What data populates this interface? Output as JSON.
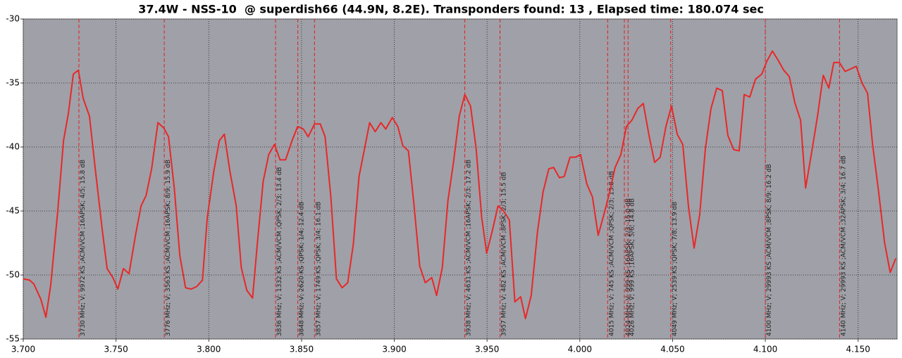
{
  "chart_data": {
    "type": "line",
    "title": "37.4W - NSS-10  @ superdish66 (44.9N, 8.2E). Transponders found: 13 , Elapsed time: 180.074 sec",
    "x": [
      3.7,
      3.7034,
      3.7057,
      3.7095,
      3.7122,
      3.7148,
      3.7186,
      3.7217,
      3.7243,
      3.727,
      3.7297,
      3.7323,
      3.7357,
      3.7388,
      3.7426,
      3.7452,
      3.7483,
      3.751,
      3.754,
      3.757,
      3.7605,
      3.7635,
      3.7662,
      3.7692,
      3.7726,
      3.7757,
      3.7783,
      3.7814,
      3.7844,
      3.7875,
      3.7905,
      3.7935,
      3.7966,
      3.7992,
      3.8027,
      3.8057,
      3.8084,
      3.8114,
      3.8148,
      3.8175,
      3.8205,
      3.8236,
      3.8262,
      3.8293,
      3.8323,
      3.8354,
      3.8384,
      3.8414,
      3.8449,
      3.8479,
      3.851,
      3.8536,
      3.857,
      3.8601,
      3.8627,
      3.8658,
      3.8688,
      3.8719,
      3.8749,
      3.8779,
      3.881,
      3.884,
      3.8867,
      3.8897,
      3.8928,
      3.8954,
      3.8989,
      3.9019,
      3.9046,
      3.9076,
      3.9106,
      3.9137,
      3.9167,
      3.9202,
      3.9228,
      3.9259,
      3.9289,
      3.9319,
      3.935,
      3.938,
      3.9411,
      3.9441,
      3.9471,
      3.9498,
      3.9529,
      3.9559,
      3.9589,
      3.962,
      3.965,
      3.9681,
      3.9707,
      3.9738,
      3.9772,
      3.9802,
      3.9833,
      3.9859,
      3.989,
      3.9916,
      3.9947,
      3.9977,
      4.0004,
      4.0038,
      4.0068,
      4.0099,
      4.0133,
      4.0163,
      4.019,
      4.0221,
      4.0251,
      4.0281,
      4.0312,
      4.0342,
      4.0373,
      4.0403,
      4.0433,
      4.0464,
      4.0494,
      4.0525,
      4.0555,
      4.0586,
      4.0616,
      4.0646,
      4.0677,
      4.0707,
      4.0738,
      4.0768,
      4.0798,
      4.0829,
      4.0859,
      4.0886,
      4.0916,
      4.0947,
      4.0981,
      4.1008,
      4.1038,
      4.1068,
      4.1099,
      4.1129,
      4.116,
      4.119,
      4.1217,
      4.1251,
      4.1281,
      4.1312,
      4.1342,
      4.1369,
      4.1399,
      4.143,
      4.146,
      4.149,
      4.1521,
      4.1551,
      4.1578,
      4.1608,
      4.1643,
      4.1673,
      4.1703
    ],
    "series": [
      {
        "color": "#e82828",
        "values": [
          -50.3,
          -50.4,
          -50.7,
          -51.9,
          -53.3,
          -50.8,
          -45.0,
          -39.5,
          -37.4,
          -34.3,
          -34.0,
          -36.2,
          -37.6,
          -41.7,
          -46.5,
          -49.5,
          -50.2,
          -51.1,
          -49.5,
          -49.9,
          -46.9,
          -44.6,
          -43.8,
          -41.7,
          -38.1,
          -38.5,
          -39.2,
          -43.2,
          -48.5,
          -51.0,
          -51.1,
          -50.9,
          -50.4,
          -45.5,
          -41.9,
          -39.5,
          -39.0,
          -41.9,
          -44.6,
          -49.4,
          -51.2,
          -51.8,
          -47.5,
          -42.7,
          -40.6,
          -39.8,
          -41.0,
          -41.0,
          -39.5,
          -38.4,
          -38.6,
          -39.2,
          -38.2,
          -38.2,
          -39.2,
          -43.9,
          -50.3,
          -51.0,
          -50.6,
          -47.6,
          -42.3,
          -40.1,
          -38.1,
          -38.8,
          -38.1,
          -38.6,
          -37.7,
          -38.4,
          -39.9,
          -40.3,
          -44.5,
          -49.3,
          -50.6,
          -50.2,
          -51.6,
          -49.4,
          -44.2,
          -41.2,
          -37.6,
          -35.9,
          -36.8,
          -40.1,
          -45.5,
          -48.3,
          -46.5,
          -44.6,
          -45.0,
          -45.7,
          -52.1,
          -51.7,
          -53.4,
          -51.6,
          -46.6,
          -43.5,
          -41.7,
          -41.6,
          -42.4,
          -42.3,
          -40.8,
          -40.8,
          -40.6,
          -42.9,
          -43.9,
          -46.9,
          -45.1,
          -43.4,
          -41.6,
          -40.6,
          -38.4,
          -37.9,
          -37.0,
          -36.6,
          -39.1,
          -41.2,
          -40.8,
          -38.4,
          -36.8,
          -39.0,
          -39.8,
          -44.7,
          -47.9,
          -45.3,
          -40.1,
          -37.0,
          -35.4,
          -35.6,
          -39.1,
          -40.2,
          -40.3,
          -35.9,
          -36.1,
          -34.7,
          -34.3,
          -33.3,
          -32.5,
          -33.2,
          -34.0,
          -34.5,
          -36.6,
          -37.9,
          -43.2,
          -40.3,
          -37.6,
          -34.4,
          -35.4,
          -33.4,
          -33.4,
          -34.1,
          -33.9,
          -33.7,
          -35.0,
          -35.8,
          -39.8,
          -43.2,
          -47.5,
          -49.8,
          -48.7
        ]
      }
    ],
    "xlim": [
      3.7,
      4.171
    ],
    "ylim": [
      -55,
      -30
    ],
    "xticks": [
      {
        "value": 3.7,
        "label": "3.700"
      },
      {
        "value": 3.75,
        "label": "3.750"
      },
      {
        "value": 3.8,
        "label": "3.800"
      },
      {
        "value": 3.85,
        "label": "3.850"
      },
      {
        "value": 3.9,
        "label": "3.900"
      },
      {
        "value": 3.95,
        "label": "3.950"
      },
      {
        "value": 4.0,
        "label": "4.000"
      },
      {
        "value": 4.05,
        "label": "4.050"
      },
      {
        "value": 4.1,
        "label": "4.100"
      },
      {
        "value": 4.15,
        "label": "4.150"
      }
    ],
    "yticks": [
      -55,
      -50,
      -45,
      -40,
      -35,
      -30
    ],
    "grid": true,
    "annotation_color": "#e02020",
    "annotations": [
      {
        "x": 3.73,
        "label": "3730 MHz; V; 9972 KS ;ACM/VCM ;16APSK; 4/5; 15.8 dB"
      },
      {
        "x": 3.776,
        "label": "3776 MHz; V; 3563 KS ;ACM/VCM ;16APSK; 8/9; 15.9 dB"
      },
      {
        "x": 3.836,
        "label": "3836 MHz; V; 1332 KS ;ACM/VCM ;QPSK; 2/3; 13.4 dB"
      },
      {
        "x": 3.848,
        "label": "3848 MHz; V; 2620 KS ;QPSK; 1/4; 12.4 dB"
      },
      {
        "x": 3.857,
        "label": "3857 MHz; V; 1749 KS ;QPSK; 3/4; 16.1 dB"
      },
      {
        "x": 3.938,
        "label": "3938 MHz; V; 4631 KS ;ACM/VCM ;16APSK; 2/3; 17.2 dB"
      },
      {
        "x": 3.957,
        "label": "3957 MHz; V; 482 KS ;ACM/VCM ;8PSK; 2/3; 15.5 dB"
      },
      {
        "x": 4.015,
        "label": "4015 MHz; V; 745 KS ;ACM/VCM ;QPSK; 2/3; 13.8 dB"
      },
      {
        "x": 4.024,
        "label": "4024 MHz; V; 999 KS ;16APSK; 2/3; 15.0 dB"
      },
      {
        "x": 4.026,
        "label": "4026 MHz; V; 999 KS ;16APSK; 5/6; 14.8 dB"
      },
      {
        "x": 4.049,
        "label": "4049 MHz; V; 2539 KS ;QPSK; 7/8; 13.9 dB"
      },
      {
        "x": 4.1,
        "label": "4100 MHz; V; 29993 KS ;ACM/VCM ;8PSK; 8/9; 16.2 dB"
      },
      {
        "x": 4.14,
        "label": "4140 MHz; V; 29993 KS ;ACM/VCM ;32APSK; 3/4; 16.7 dB"
      }
    ]
  }
}
